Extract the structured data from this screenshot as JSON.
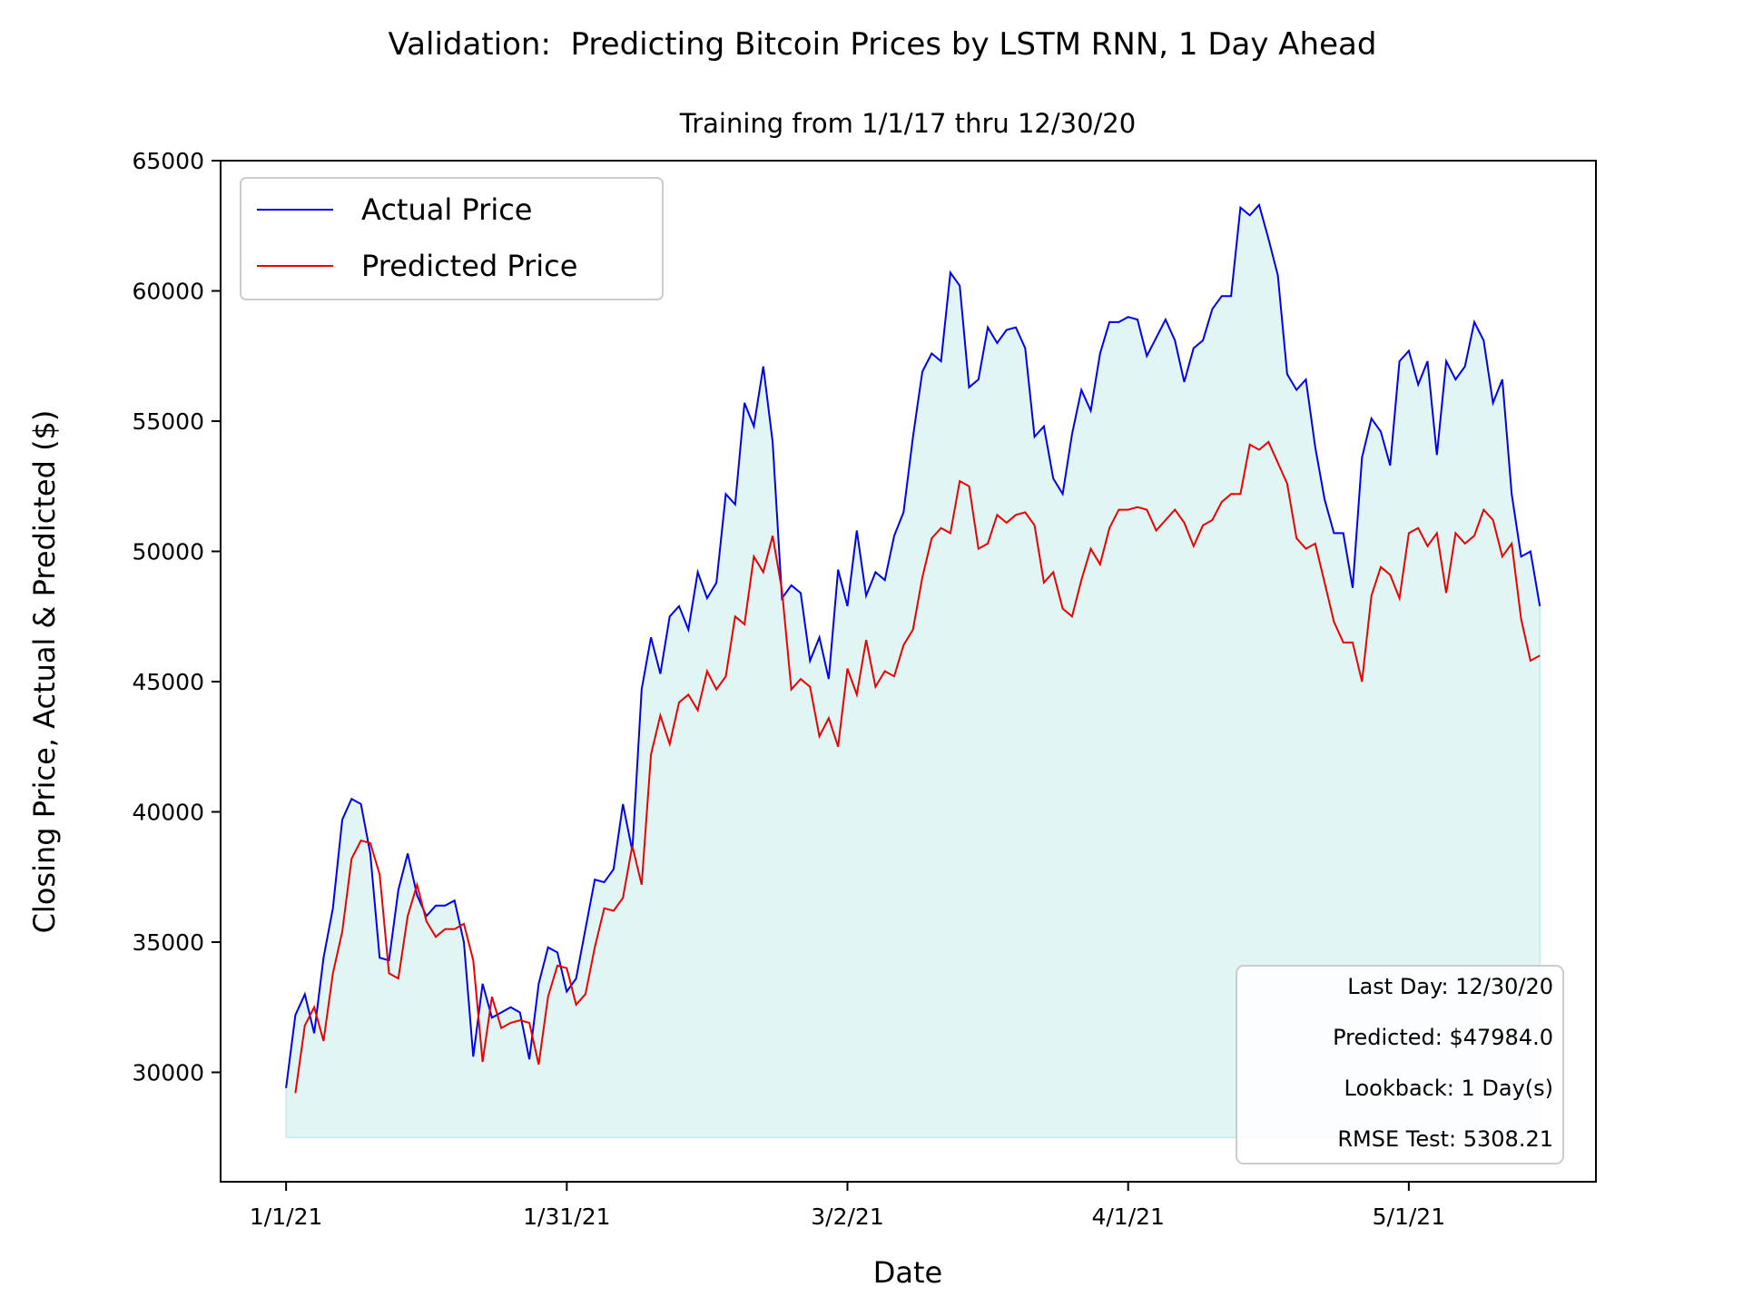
{
  "colors": {
    "actual": "#0000ee",
    "predicted": "#ee0000",
    "fill": "#e0f5f4",
    "fill_edge": "#c6ebe8"
  },
  "chart_data": {
    "type": "line",
    "title": "Validation:  Predicting Bitcoin Prices by LSTM RNN, 1 Day Ahead",
    "subtitle": "Training from 1/1/17 thru 12/30/20",
    "xlabel": "Date",
    "ylabel": "Closing Price, Actual & Predicted ($)",
    "ylim": [
      25800,
      65000
    ],
    "yticks": [
      30000,
      35000,
      40000,
      45000,
      50000,
      55000,
      60000,
      65000
    ],
    "x_start_date": "2021-01-01",
    "x_range_days": [
      -7,
      140
    ],
    "xticks": [
      {
        "day": 0,
        "label": "1/1/21"
      },
      {
        "day": 30,
        "label": "1/31/21"
      },
      {
        "day": 60,
        "label": "3/2/21"
      },
      {
        "day": 90,
        "label": "4/1/21"
      },
      {
        "day": 120,
        "label": "5/1/21"
      }
    ],
    "fill_between": {
      "baseline": 27500,
      "from_day": 0,
      "to_day": 134
    },
    "legend_position": "upper left",
    "series": [
      {
        "name": "Actual Price",
        "start_day": 0,
        "values": [
          29400,
          32200,
          33000,
          31500,
          34400,
          36300,
          39700,
          40500,
          40300,
          38400,
          34400,
          34300,
          37000,
          38400,
          36800,
          36000,
          36400,
          36400,
          36600,
          35000,
          30600,
          33400,
          32100,
          32300,
          32500,
          32300,
          30500,
          33400,
          34800,
          34600,
          33100,
          33600,
          35500,
          37400,
          37300,
          37800,
          40300,
          38500,
          44700,
          46700,
          45300,
          47500,
          47900,
          47000,
          49200,
          48200,
          48800,
          52200,
          51800,
          55700,
          54800,
          57100,
          54200,
          48200,
          48700,
          48400,
          45800,
          46700,
          45100,
          49300,
          47900,
          50800,
          48300,
          49200,
          48900,
          50600,
          51500,
          54400,
          56900,
          57600,
          57300,
          60700,
          60200,
          56300,
          56600,
          58600,
          58000,
          58500,
          58600,
          57800,
          54400,
          54800,
          52800,
          52200,
          54500,
          56200,
          55400,
          57600,
          58800,
          58800,
          59000,
          58900,
          57500,
          58200,
          58900,
          58100,
          56500,
          57800,
          58100,
          59300,
          59800,
          59800,
          63200,
          62900,
          63300,
          62000,
          60600,
          56800,
          56200,
          56600,
          54000,
          52000,
          50700,
          50700,
          48600,
          53600,
          55100,
          54600,
          53300,
          57300,
          57700,
          56400,
          57300,
          53700,
          57300,
          56600,
          57100,
          58800,
          58100,
          55700,
          56600,
          52200,
          49800,
          50000,
          47900
        ]
      },
      {
        "name": "Predicted Price",
        "start_day": 1,
        "values": [
          29200,
          31800,
          32500,
          31200,
          33800,
          35400,
          38200,
          38900,
          38800,
          37600,
          33800,
          33600,
          36000,
          37200,
          35800,
          35200,
          35500,
          35500,
          35700,
          34300,
          30400,
          32900,
          31700,
          31900,
          32000,
          31900,
          30300,
          32900,
          34100,
          34000,
          32600,
          33000,
          34800,
          36300,
          36200,
          36700,
          38700,
          37200,
          42200,
          43700,
          42600,
          44200,
          44500,
          43900,
          45400,
          44700,
          45200,
          47500,
          47200,
          49800,
          49200,
          50600,
          48500,
          44700,
          45100,
          44800,
          42900,
          43600,
          42500,
          45500,
          44500,
          46600,
          44800,
          45400,
          45200,
          46400,
          47000,
          49000,
          50500,
          50900,
          50700,
          52700,
          52500,
          50100,
          50300,
          51400,
          51100,
          51400,
          51500,
          51000,
          48800,
          49200,
          47800,
          47500,
          48900,
          50100,
          49500,
          50900,
          51600,
          51600,
          51700,
          51600,
          50800,
          51200,
          51600,
          51100,
          50200,
          51000,
          51200,
          51900,
          52200,
          52200,
          54100,
          53900,
          54200,
          53400,
          52600,
          50500,
          50100,
          50300,
          48800,
          47300,
          46500,
          46500,
          45000,
          48300,
          49400,
          49100,
          48200,
          50700,
          50900,
          50200,
          50700,
          48400,
          50700,
          50300,
          50600,
          51600,
          51200,
          49800,
          50300,
          47400,
          45800,
          46000
        ]
      }
    ],
    "info_box": [
      "Last Day: 12/30/20",
      "Predicted: $47984.0",
      "Lookback: 1 Day(s)",
      "RMSE Test: 5308.21"
    ]
  }
}
